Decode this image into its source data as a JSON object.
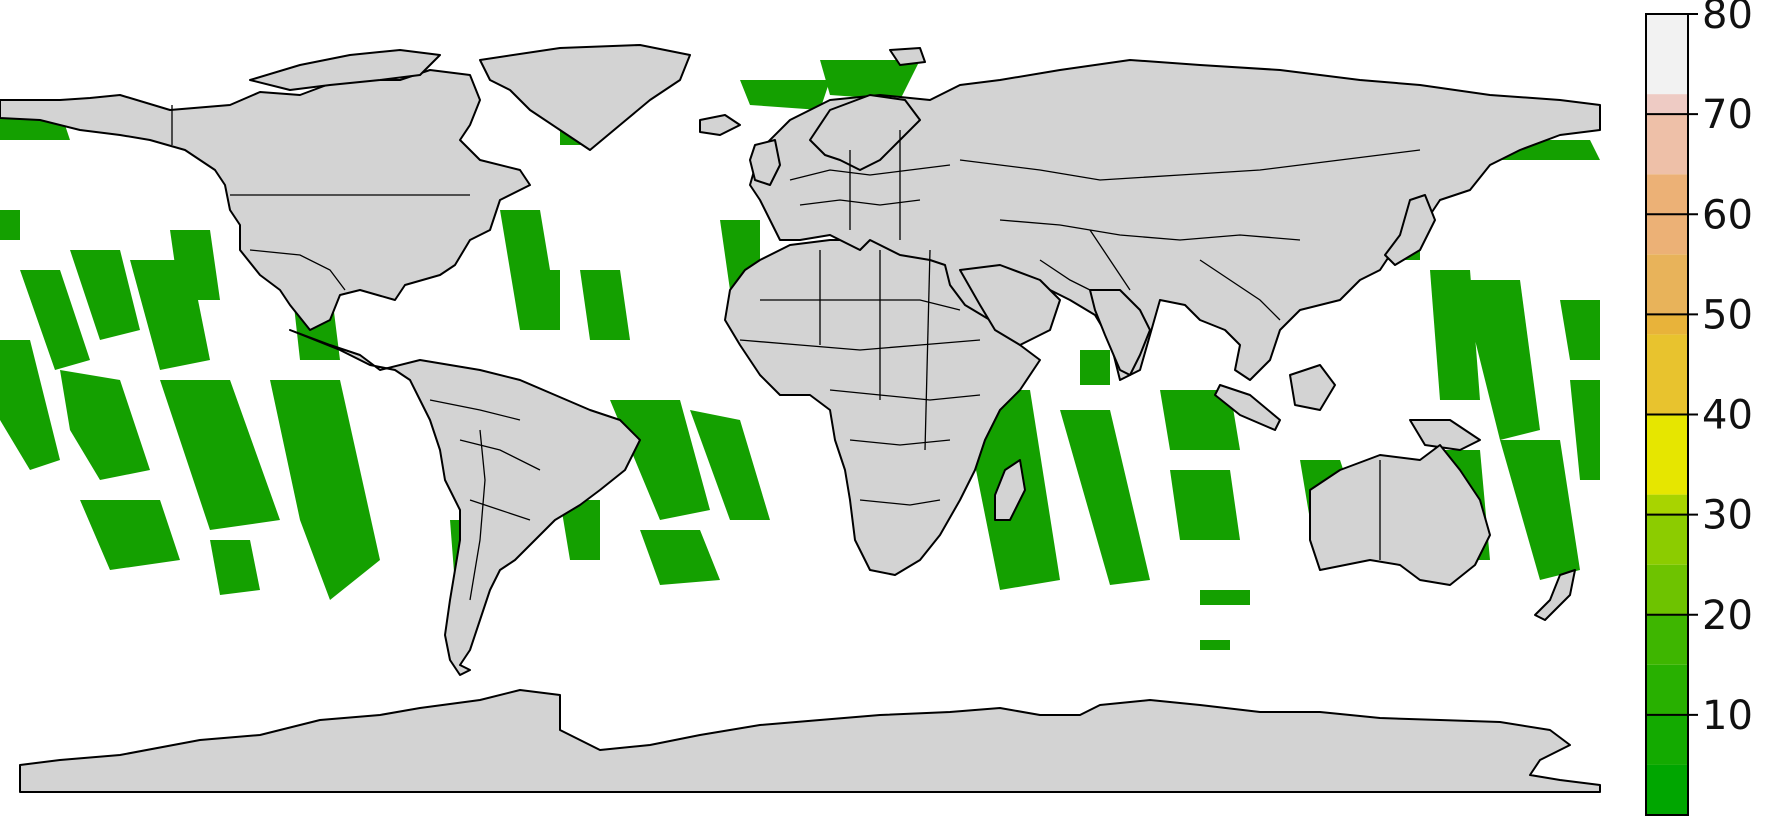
{
  "map": {
    "projection": "equirectangular",
    "land_color": "#d3d3d3",
    "ocean_color": "#ffffff",
    "outline_color": "#000000",
    "data_color": "#14a000",
    "coverage_pattern": "satellite swath strips over ocean"
  },
  "colorbar": {
    "ticks": [
      "10",
      "20",
      "30",
      "40",
      "50",
      "60",
      "70",
      "80"
    ],
    "range": [
      0,
      80
    ],
    "bins": [
      {
        "from": 0,
        "to": 5,
        "color": "#00a600"
      },
      {
        "from": 5,
        "to": 10,
        "color": "#13aa00"
      },
      {
        "from": 10,
        "to": 15,
        "color": "#28b000"
      },
      {
        "from": 15,
        "to": 20,
        "color": "#3eb600"
      },
      {
        "from": 20,
        "to": 25,
        "color": "#6ec300"
      },
      {
        "from": 25,
        "to": 30,
        "color": "#8ccc00"
      },
      {
        "from": 30,
        "to": 32,
        "color": "#a8d400"
      },
      {
        "from": 32,
        "to": 40,
        "color": "#e6e600"
      },
      {
        "from": 40,
        "to": 48,
        "color": "#e8c32e"
      },
      {
        "from": 48,
        "to": 50,
        "color": "#e8b33a"
      },
      {
        "from": 50,
        "to": 56,
        "color": "#e8b35a"
      },
      {
        "from": 56,
        "to": 64,
        "color": "#ecb176"
      },
      {
        "from": 64,
        "to": 70,
        "color": "#eec0a8"
      },
      {
        "from": 70,
        "to": 72,
        "color": "#eecbc4"
      },
      {
        "from": 72,
        "to": 80,
        "color": "#f2f2f2"
      }
    ]
  }
}
